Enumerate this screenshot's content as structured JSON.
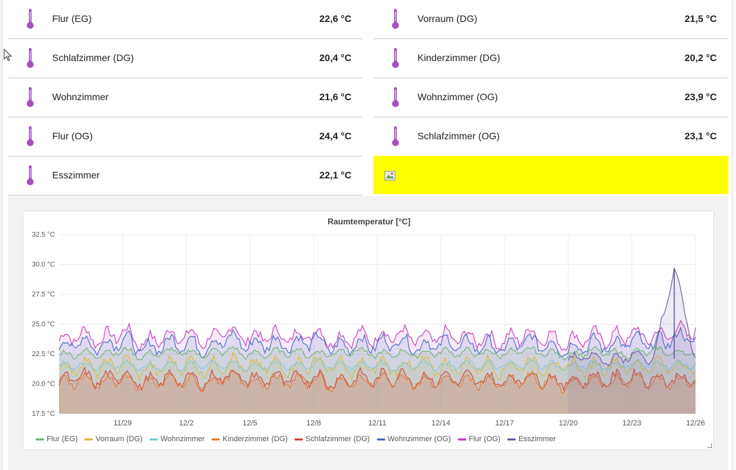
{
  "sensors": [
    {
      "name": "Flur (EG)",
      "value": "22,6 °C"
    },
    {
      "name": "Vorraum (DG)",
      "value": "21,5 °C"
    },
    {
      "name": "Schlafzimmer (DG)",
      "value": "20,4 °C"
    },
    {
      "name": "Kinderzimmer (DG)",
      "value": "20,2 °C"
    },
    {
      "name": "Wohnzimmer",
      "value": "21,6 °C"
    },
    {
      "name": "Wohnzimmer (OG)",
      "value": "23,9 °C"
    },
    {
      "name": "Flur (OG)",
      "value": "24,4 °C"
    },
    {
      "name": "Schlafzimmer (OG)",
      "value": "23,1 °C"
    },
    {
      "name": "Esszimmer",
      "value": "22,1 °C"
    }
  ],
  "icons": {
    "sensor": "thermometer-icon",
    "broken_image": "broken-image-icon",
    "pointer": "mouse-cursor-icon"
  },
  "colors": {
    "icon": "#a64fc0",
    "tile_highlight": "#ffff00"
  },
  "chart_data": {
    "type": "area",
    "title": "Raumtemperatur [°C]",
    "xlabel": "",
    "ylabel": "",
    "ylim": [
      17.5,
      32.5
    ],
    "yticks": [
      32.5,
      30.0,
      27.5,
      25.0,
      22.5,
      20.0,
      17.5
    ],
    "ytick_labels": [
      "32.5 °C",
      "30.0 °C",
      "27.5 °C",
      "25.0 °C",
      "22.5 °C",
      "20.0 °C",
      "17.5 °C"
    ],
    "x_range_days": [
      "11/26",
      "12/26"
    ],
    "xtick_labels": [
      "11/29",
      "12/2",
      "12/5",
      "12/8",
      "12/11",
      "12/14",
      "12/17",
      "12/20",
      "12/23",
      "12/26"
    ],
    "grid": true,
    "legend_position": "bottom-left",
    "series": [
      {
        "name": "Flur (EG)",
        "color": "#6ab86c",
        "base": 22.6,
        "amp": 0.5,
        "values": [
          22.4,
          22.6,
          22.5,
          22.8,
          22.3,
          22.7,
          22.6,
          22.5,
          22.9,
          22.4,
          22.6,
          22.7,
          22.5,
          22.6,
          22.8,
          22.4,
          22.6,
          22.5,
          22.7,
          22.6,
          22.6,
          22.5,
          22.8,
          22.6,
          22.4,
          22.7,
          22.6,
          22.5,
          22.8,
          22.6,
          22.6
        ]
      },
      {
        "name": "Vorraum (DG)",
        "color": "#e5b92d",
        "base": 21.5,
        "amp": 1.0,
        "values": [
          21.2,
          21.6,
          21.3,
          21.8,
          21.0,
          21.5,
          21.7,
          21.2,
          21.9,
          21.3,
          21.6,
          21.4,
          21.8,
          21.5,
          21.2,
          21.6,
          21.4,
          21.7,
          21.3,
          21.5,
          21.6,
          21.2,
          21.8,
          21.4,
          21.5,
          21.3,
          21.7,
          21.4,
          21.6,
          21.5,
          21.5
        ]
      },
      {
        "name": "Wohnzimmer",
        "color": "#7ecbd8",
        "base": 21.6,
        "amp": 0.5,
        "values": [
          21.4,
          21.6,
          21.5,
          21.7,
          21.3,
          21.6,
          21.5,
          21.7,
          21.6,
          21.4,
          21.6,
          21.5,
          21.7,
          21.6,
          21.5,
          21.6,
          21.4,
          21.7,
          21.5,
          21.6,
          21.6,
          21.5,
          21.7,
          21.6,
          21.4,
          21.6,
          21.5,
          21.7,
          21.6,
          21.6,
          21.6
        ]
      },
      {
        "name": "Kinderzimmer (DG)",
        "color": "#e07b39",
        "base": 20.2,
        "amp": 0.8,
        "values": [
          20.0,
          20.4,
          20.1,
          20.5,
          19.8,
          20.3,
          20.2,
          20.0,
          20.6,
          20.1,
          20.3,
          20.2,
          20.4,
          19.9,
          20.3,
          20.2,
          20.5,
          20.1,
          20.3,
          20.2,
          20.2,
          20.0,
          20.4,
          20.2,
          19.9,
          20.3,
          20.1,
          20.4,
          20.2,
          20.2,
          20.2
        ]
      },
      {
        "name": "Schlafzimmer (DG)",
        "color": "#d4473c",
        "base": 20.4,
        "amp": 0.9,
        "values": [
          20.2,
          20.6,
          20.3,
          20.8,
          20.0,
          20.5,
          20.4,
          20.2,
          20.9,
          20.3,
          20.5,
          20.4,
          20.6,
          20.1,
          20.5,
          20.4,
          20.7,
          20.3,
          20.5,
          20.4,
          20.4,
          20.2,
          20.6,
          20.4,
          20.1,
          20.5,
          20.3,
          20.6,
          20.4,
          20.4,
          20.4
        ]
      },
      {
        "name": "Wohnzimmer (OG)",
        "color": "#3f6ec4",
        "base": 23.2,
        "amp": 1.0,
        "values": [
          23.0,
          23.6,
          23.1,
          23.8,
          22.8,
          23.4,
          23.5,
          23.0,
          23.9,
          23.2,
          23.5,
          23.3,
          23.7,
          23.0,
          23.4,
          23.3,
          23.6,
          23.1,
          23.4,
          23.3,
          23.2,
          23.0,
          23.6,
          23.3,
          22.9,
          23.4,
          23.2,
          23.6,
          23.3,
          23.9,
          23.9
        ]
      },
      {
        "name": "Flur (OG)",
        "color": "#c13ec0",
        "base": 23.8,
        "amp": 1.0,
        "values": [
          23.6,
          24.2,
          23.7,
          24.4,
          23.4,
          24.0,
          24.1,
          23.6,
          24.5,
          23.8,
          24.1,
          23.9,
          24.3,
          23.6,
          24.0,
          23.9,
          24.2,
          23.7,
          24.0,
          23.9,
          23.8,
          23.6,
          24.2,
          23.9,
          23.5,
          24.0,
          23.8,
          24.2,
          23.9,
          24.4,
          24.4
        ]
      },
      {
        "name": "Esszimmer",
        "color": "#6d57a8",
        "base": 22.1,
        "amp": 0.6,
        "values": [
          null,
          null,
          null,
          null,
          null,
          null,
          null,
          null,
          null,
          null,
          null,
          null,
          null,
          null,
          null,
          null,
          null,
          null,
          null,
          null,
          null,
          null,
          null,
          null,
          22.0,
          22.3,
          21.9,
          22.4,
          22.1,
          29.7,
          22.1
        ]
      }
    ]
  }
}
